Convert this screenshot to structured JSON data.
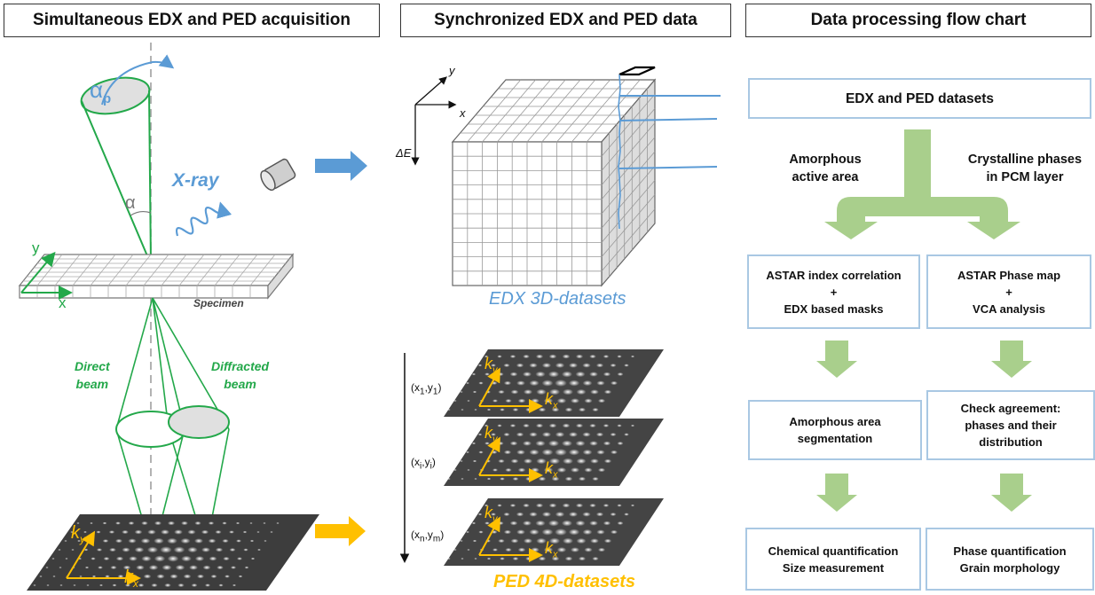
{
  "headers": {
    "left": "Simultaneous EDX and PED acquisition",
    "middle": "Synchronized EDX and PED data",
    "right": "Data processing flow chart"
  },
  "left_panel": {
    "alpha_p": "α",
    "alpha_p_sub": "p",
    "alpha": "α",
    "xray": "X-ray",
    "axis_y": "y",
    "axis_x": "x",
    "specimen": "Specimen",
    "direct_beam": [
      "Direct",
      "beam"
    ],
    "diffracted_beam": [
      "Diffracted",
      "beam"
    ],
    "k_y": "k",
    "k_y_sub": "y",
    "k_x": "k",
    "k_x_sub": "x"
  },
  "middle_panel": {
    "axis_y": "y",
    "axis_x": "x",
    "axis_dE": "ΔE",
    "edx_caption": "EDX 3D-datasets",
    "ped_caption": "PED 4D-datasets",
    "positions": [
      {
        "main": "(x",
        "s1": "1",
        "mid": ",y",
        "s2": "1",
        "end": ")"
      },
      {
        "main": "(x",
        "s1": "i",
        "mid": ",y",
        "s2": "i",
        "end": ")"
      },
      {
        "main": "(x",
        "s1": "n",
        "mid": ",y",
        "s2": "m",
        "end": ")"
      }
    ]
  },
  "flow": {
    "top": "EDX and PED datasets",
    "branch_left": [
      "Amorphous",
      "active area"
    ],
    "branch_right": [
      "Crystalline phases",
      "in PCM layer"
    ],
    "l1": [
      "ASTAR index correlation",
      "+",
      "EDX based masks"
    ],
    "r1": [
      "ASTAR Phase map",
      "+",
      "VCA analysis"
    ],
    "l2": [
      "Amorphous area",
      "segmentation"
    ],
    "r2": [
      "Check agreement:",
      "phases and their",
      "distribution"
    ],
    "l3": [
      "Chemical quantification",
      "Size measurement"
    ],
    "r3": [
      "Phase quantification",
      "Grain morphology"
    ]
  },
  "colors": {
    "green": "#23a84a",
    "blue": "#5b9bd5",
    "orange": "#ffc000",
    "flow_green": "#a9cf8c",
    "box_border": "#a9c8e3"
  }
}
